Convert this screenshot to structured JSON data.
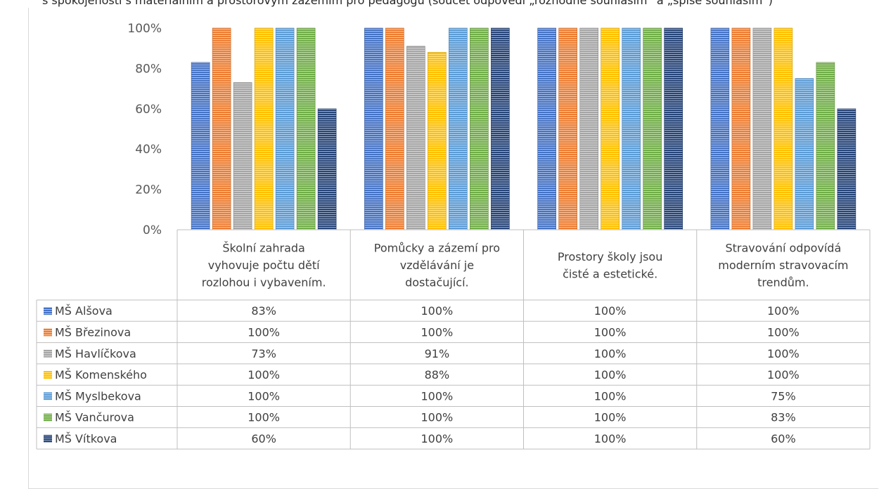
{
  "caption": "s spokojenosti s materiálním a prostorovým zázemím pro pedagogů (součet odpovědí „rozhodně souhlasím“ a „spíše souhlasím“)",
  "colors": {
    "MŠ Alšova": "#4472c4",
    "MŠ Březinova": "#ed7d31",
    "MŠ Havlíčkova": "#a5a5a5",
    "MŠ Komenského": "#ffc000",
    "MŠ Myslbekova": "#5b9bd5",
    "MŠ Vančurova": "#70ad47",
    "MŠ Vítkova": "#264478"
  },
  "chart_data": {
    "type": "bar",
    "categories": [
      "Školní zahrada vyhovuje počtu dětí rozlohou i vybavením.",
      "Pomůcky a zázemí pro vzdělávání je dostačující.",
      "Prostory školy jsou čisté a estetické.",
      "Stravování odpovídá moderním stravovacím trendům."
    ],
    "category_lines": [
      [
        "Školní zahrada",
        "vyhovuje počtu dětí",
        "rozlohou i vybavením."
      ],
      [
        "Pomůcky a zázemí pro",
        "vzdělávání je",
        "dostačující."
      ],
      [
        "Prostory školy jsou",
        "čisté a estetické."
      ],
      [
        "Stravování odpovídá",
        "moderním stravovacím",
        "trendům."
      ]
    ],
    "series": [
      {
        "name": "MŠ Alšova",
        "values": [
          83,
          100,
          100,
          100
        ],
        "labels": [
          "83%",
          "100%",
          "100%",
          "100%"
        ]
      },
      {
        "name": "MŠ Březinova",
        "values": [
          100,
          100,
          100,
          100
        ],
        "labels": [
          "100%",
          "100%",
          "100%",
          "100%"
        ]
      },
      {
        "name": "MŠ Havlíčkova",
        "values": [
          73,
          91,
          100,
          100
        ],
        "labels": [
          "73%",
          "91%",
          "100%",
          "100%"
        ]
      },
      {
        "name": "MŠ Komenského",
        "values": [
          100,
          88,
          100,
          100
        ],
        "labels": [
          "100%",
          "88%",
          "100%",
          "100%"
        ]
      },
      {
        "name": "MŠ Myslbekova",
        "values": [
          100,
          100,
          100,
          75
        ],
        "labels": [
          "100%",
          "100%",
          "100%",
          "75%"
        ]
      },
      {
        "name": "MŠ Vančurova",
        "values": [
          100,
          100,
          100,
          83
        ],
        "labels": [
          "100%",
          "100%",
          "100%",
          "83%"
        ]
      },
      {
        "name": "MŠ Vítkova",
        "values": [
          60,
          100,
          100,
          60
        ],
        "labels": [
          "60%",
          "100%",
          "100%",
          "60%"
        ]
      }
    ],
    "yticks": [
      "0%",
      "20%",
      "40%",
      "60%",
      "80%",
      "100%"
    ],
    "ylim": [
      0,
      100
    ],
    "grid": false,
    "legend": "data-table",
    "bar_pattern": "horizontal-stripes"
  }
}
